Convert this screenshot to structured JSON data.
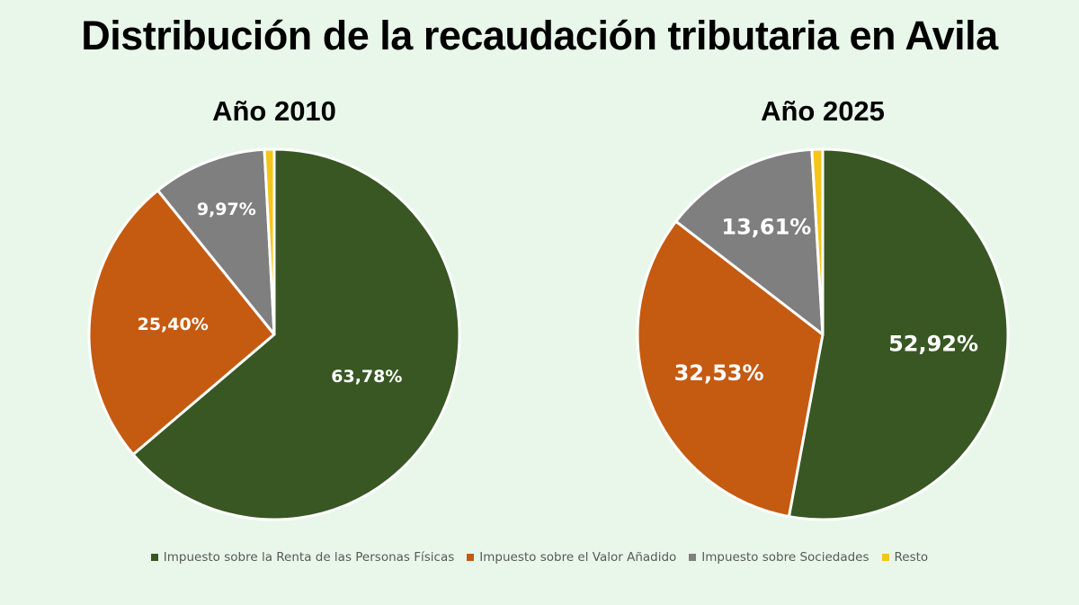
{
  "title": "Distribución de la recaudación tributaria en Avila",
  "legend_placement": "bottom",
  "chart_data": [
    {
      "type": "pie",
      "title": "Año 2010",
      "slices": [
        {
          "name": "Impuesto sobre la Renta de las Personas Físicas",
          "value": 63.78,
          "label": "63,78%",
          "color": "#385723"
        },
        {
          "name": "Impuesto sobre el Valor Añadido",
          "value": 25.4,
          "label": "25,40%",
          "color": "#c55a11"
        },
        {
          "name": "Impuesto sobre Sociedades",
          "value": 9.97,
          "label": "9,97%",
          "color": "#7f7f7f"
        },
        {
          "name": "Resto",
          "value": 0.85,
          "label": "",
          "color": "#f5c518"
        }
      ]
    },
    {
      "type": "pie",
      "title": "Año 2025",
      "slices": [
        {
          "name": "Impuesto sobre la Renta de las Personas Físicas",
          "value": 52.92,
          "label": "52,92%",
          "color": "#385723"
        },
        {
          "name": "Impuesto sobre el Valor Añadido",
          "value": 32.53,
          "label": "32,53%",
          "color": "#c55a11"
        },
        {
          "name": "Impuesto sobre Sociedades",
          "value": 13.61,
          "label": "13,61%",
          "color": "#7f7f7f"
        },
        {
          "name": "Resto",
          "value": 0.94,
          "label": "",
          "color": "#f5c518"
        }
      ]
    }
  ],
  "legend": [
    {
      "label": "Impuesto sobre la Renta de las Personas Físicas",
      "color": "#385723"
    },
    {
      "label": "Impuesto sobre el Valor Añadido",
      "color": "#c55a11"
    },
    {
      "label": "Impuesto sobre Sociedades",
      "color": "#7f7f7f"
    },
    {
      "label": "Resto",
      "color": "#f5c518"
    }
  ]
}
